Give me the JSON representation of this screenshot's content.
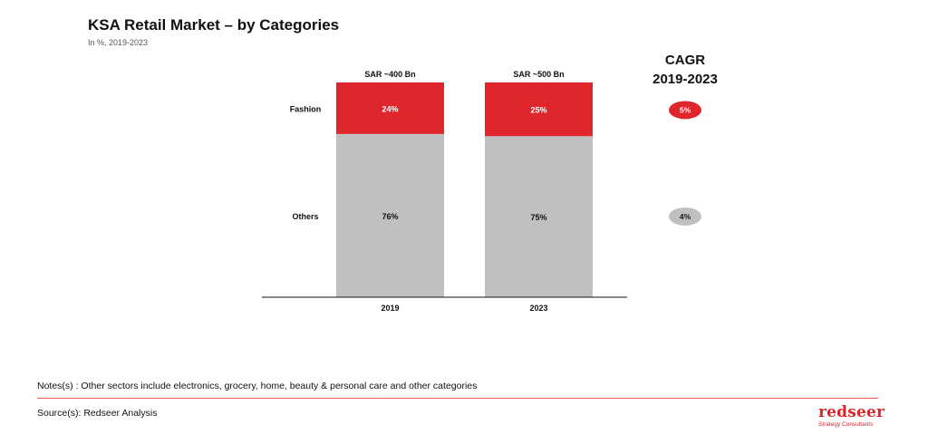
{
  "title": "KSA Retail Market – by Categories",
  "subtitle": "In %, 2019-2023",
  "cagr_header": {
    "line1": "CAGR",
    "line2": "2019-2023"
  },
  "notes": "Notes(s) : Other sectors include electronics, grocery, home,  beauty & personal care and other categories",
  "source": "Source(s): Redseer Analysis",
  "logo": {
    "word": "redseer",
    "tagline": "Strategy Consultants"
  },
  "colors": {
    "fashion": "#e0262d",
    "others": "#c0c0c0",
    "axis": "#111111",
    "divider": "#e55555"
  },
  "chart_data": {
    "type": "bar",
    "stacked": true,
    "percent": true,
    "categories": [
      "2019",
      "2023"
    ],
    "totals": [
      "SAR ~400 Bn",
      "SAR ~500 Bn"
    ],
    "series": [
      {
        "name": "Others",
        "values": [
          76,
          75
        ],
        "labels": [
          "76%",
          "75%"
        ],
        "cagr": "4%",
        "color": "#c0c0c0"
      },
      {
        "name": "Fashion",
        "values": [
          24,
          25
        ],
        "labels": [
          "24%",
          "25%"
        ],
        "cagr": "5%",
        "color": "#e0262d"
      }
    ],
    "ylim": [
      0,
      100
    ]
  }
}
